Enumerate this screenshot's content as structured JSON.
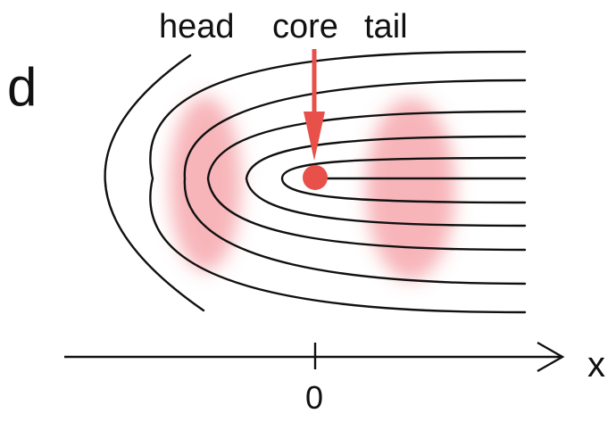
{
  "panel_label": "d",
  "labels": {
    "head": "head",
    "core": "core",
    "tail": "tail"
  },
  "axis": {
    "x_label": "x",
    "zero_label": "0"
  },
  "colors": {
    "contour": "#111111",
    "accent": "#e8504a",
    "blob": "#ee5a66"
  }
}
